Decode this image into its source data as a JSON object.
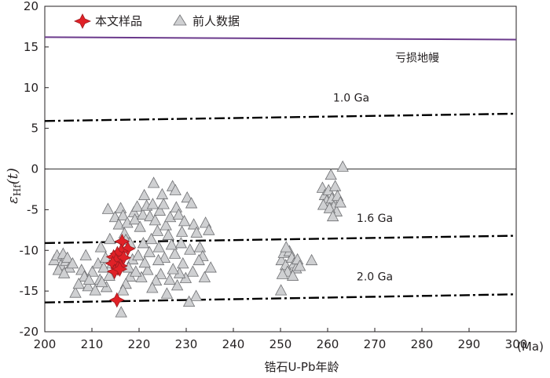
{
  "chart_data": {
    "type": "scatter",
    "xlabel": "锆石U-Pb年龄",
    "ylabel_main": "ε",
    "ylabel_sub": "Hf",
    "ylabel_arg": "(t)",
    "x_unit": "(Ma)",
    "xlim": [
      200,
      300
    ],
    "ylim": [
      -20,
      20
    ],
    "x_ticks": [
      "200",
      "210",
      "220",
      "230",
      "240",
      "250",
      "260",
      "270",
      "280",
      "290",
      "300"
    ],
    "y_ticks": [
      "20",
      "15",
      "10",
      "5",
      "0",
      "-5",
      "-10",
      "-15",
      "-20"
    ],
    "legend": [
      {
        "label": "本文样品",
        "marker": "diamond",
        "color": "#e02127"
      },
      {
        "label": "前人数据",
        "marker": "triangle",
        "color": "#cfd0d2"
      }
    ],
    "reference_lines": [
      {
        "name": "亏损地幔",
        "kind": "solid",
        "color": "#6b3a8c",
        "x": [
          200,
          300
        ],
        "y": [
          16.2,
          15.9
        ]
      },
      {
        "name": "1.0 Ga",
        "kind": "dashdot",
        "color": "#000000",
        "x": [
          200,
          300
        ],
        "y": [
          5.9,
          6.8
        ]
      },
      {
        "name": "1.6 Ga",
        "kind": "dashdot",
        "color": "#000000",
        "x": [
          200,
          300
        ],
        "y": [
          -9.1,
          -8.2
        ]
      },
      {
        "name": "2.0 Ga",
        "kind": "dashdot",
        "color": "#000000",
        "x": [
          200,
          300
        ],
        "y": [
          -16.4,
          -15.4
        ]
      },
      {
        "name": "",
        "kind": "thin",
        "color": "#333333",
        "x": [
          200,
          300
        ],
        "y": [
          0,
          0
        ]
      }
    ],
    "annotations": [
      {
        "text": "亏损地幔",
        "x": 279,
        "y": 13.2
      },
      {
        "text": "1.0 Ga",
        "x": 265,
        "y": 8.3
      },
      {
        "text": "1.6 Ga",
        "x": 270,
        "y": -6.5
      },
      {
        "text": "2.0 Ga",
        "x": 270,
        "y": -13.7
      }
    ],
    "series": [
      {
        "name": "本文样品",
        "marker": "diamond",
        "color": "#e02127",
        "points": [
          [
            216.4,
            -8.9
          ],
          [
            217.6,
            -9.8
          ],
          [
            216.2,
            -10.1
          ],
          [
            215.4,
            -10.4
          ],
          [
            214.6,
            -10.8
          ],
          [
            216.7,
            -10.9
          ],
          [
            215.1,
            -11.3
          ],
          [
            214.4,
            -11.6
          ],
          [
            216.0,
            -11.9
          ],
          [
            215.5,
            -12.2
          ],
          [
            214.8,
            -12.6
          ],
          [
            215.9,
            -12.3
          ],
          [
            215.3,
            -16.1
          ]
        ]
      },
      {
        "name": "前人数据",
        "marker": "triangle",
        "color": "#cfd0d2",
        "points": [
          [
            202.0,
            -11.2
          ],
          [
            202.6,
            -10.6
          ],
          [
            203.4,
            -11.8
          ],
          [
            203.9,
            -10.4
          ],
          [
            204.5,
            -11.3
          ],
          [
            205.2,
            -12.1
          ],
          [
            204.8,
            -10.9
          ],
          [
            205.9,
            -11.6
          ],
          [
            202.9,
            -12.4
          ],
          [
            204.1,
            -12.8
          ],
          [
            206.5,
            -15.2
          ],
          [
            207.8,
            -12.4
          ],
          [
            208.4,
            -13.2
          ],
          [
            208.7,
            -10.6
          ],
          [
            209.2,
            -14.4
          ],
          [
            210.1,
            -12.6
          ],
          [
            210.7,
            -14.9
          ],
          [
            211.3,
            -11.6
          ],
          [
            211.7,
            -13.6
          ],
          [
            212.5,
            -12.1
          ],
          [
            213.1,
            -14.5
          ],
          [
            213.7,
            -13.1
          ],
          [
            212.9,
            -10.9
          ],
          [
            214.3,
            -11.6
          ],
          [
            213.4,
            -4.9
          ],
          [
            214.9,
            -5.9
          ],
          [
            216.1,
            -4.8
          ],
          [
            216.6,
            -5.7
          ],
          [
            215.7,
            -6.8
          ],
          [
            216.9,
            -7.9
          ],
          [
            217.2,
            -8.7
          ],
          [
            218.1,
            -9.1
          ],
          [
            218.6,
            -11.1
          ],
          [
            218.1,
            -13.2
          ],
          [
            217.8,
            -12.1
          ],
          [
            217.2,
            -14.1
          ],
          [
            216.6,
            -14.9
          ],
          [
            216.2,
            -17.6
          ],
          [
            217.5,
            -6.6
          ],
          [
            218.9,
            -5.3
          ],
          [
            219.6,
            -4.6
          ],
          [
            219.1,
            -6.2
          ],
          [
            220.2,
            -7.1
          ],
          [
            220.8,
            -5.6
          ],
          [
            221.1,
            -3.2
          ],
          [
            221.6,
            -4.5
          ],
          [
            222.3,
            -5.8
          ],
          [
            222.9,
            -4.3
          ],
          [
            223.1,
            -1.7
          ],
          [
            223.4,
            -6.3
          ],
          [
            223.9,
            -7.6
          ],
          [
            224.4,
            -5.1
          ],
          [
            224.9,
            -3.1
          ],
          [
            225.2,
            -4.3
          ],
          [
            225.7,
            -6.9
          ],
          [
            226.2,
            -8.1
          ],
          [
            226.6,
            -5.9
          ],
          [
            227.1,
            -2.1
          ],
          [
            227.7,
            -2.6
          ],
          [
            227.9,
            -4.7
          ],
          [
            228.4,
            -5.6
          ],
          [
            229.1,
            -7.7
          ],
          [
            229.6,
            -6.4
          ],
          [
            230.2,
            -3.5
          ],
          [
            231.1,
            -4.2
          ],
          [
            231.6,
            -6.8
          ],
          [
            232.2,
            -7.8
          ],
          [
            232.9,
            -9.6
          ],
          [
            233.5,
            -10.7
          ],
          [
            234.1,
            -6.6
          ],
          [
            234.8,
            -7.5
          ],
          [
            235.2,
            -12.1
          ],
          [
            233.9,
            -13.3
          ],
          [
            232.7,
            -11.2
          ],
          [
            232.1,
            -15.6
          ],
          [
            231.4,
            -12.6
          ],
          [
            230.6,
            -16.3
          ],
          [
            229.9,
            -13.4
          ],
          [
            229.3,
            -11.6
          ],
          [
            228.6,
            -12.8
          ],
          [
            228.1,
            -14.3
          ],
          [
            227.6,
            -10.4
          ],
          [
            227.2,
            -12.3
          ],
          [
            226.5,
            -13.6
          ],
          [
            225.9,
            -15.3
          ],
          [
            225.4,
            -10.9
          ],
          [
            224.6,
            -12.9
          ],
          [
            224.1,
            -11.2
          ],
          [
            223.6,
            -13.7
          ],
          [
            222.8,
            -14.6
          ],
          [
            222.2,
            -10.2
          ],
          [
            221.8,
            -12.4
          ],
          [
            221.2,
            -11.5
          ],
          [
            220.5,
            -13.3
          ],
          [
            219.8,
            -10.6
          ],
          [
            219.3,
            -12.6
          ],
          [
            220.9,
            -9.1
          ],
          [
            222.6,
            -8.6
          ],
          [
            224.2,
            -9.6
          ],
          [
            226.9,
            -9.3
          ],
          [
            228.9,
            -9.1
          ],
          [
            230.8,
            -9.9
          ],
          [
            213.8,
            -8.6
          ],
          [
            211.9,
            -9.6
          ],
          [
            209.4,
            -13.6
          ],
          [
            207.2,
            -14.1
          ],
          [
            212.1,
            -13.9
          ],
          [
            250.2,
            -11.2
          ],
          [
            250.7,
            -10.3
          ],
          [
            251.1,
            -11.8
          ],
          [
            251.5,
            -12.6
          ],
          [
            251.9,
            -10.1
          ],
          [
            252.4,
            -10.9
          ],
          [
            252.9,
            -11.6
          ],
          [
            253.3,
            -12.2
          ],
          [
            252.6,
            -13.1
          ],
          [
            251.2,
            -9.6
          ],
          [
            250.4,
            -12.9
          ],
          [
            250.1,
            -14.9
          ],
          [
            253.6,
            -11.1
          ],
          [
            254.1,
            -11.9
          ],
          [
            256.6,
            -11.2
          ],
          [
            258.9,
            -2.3
          ],
          [
            259.4,
            -3.2
          ],
          [
            259.8,
            -3.9
          ],
          [
            260.2,
            -2.6
          ],
          [
            260.7,
            -0.7
          ],
          [
            260.9,
            -3.6
          ],
          [
            261.3,
            -4.6
          ],
          [
            261.6,
            -2.1
          ],
          [
            261.9,
            -5.2
          ],
          [
            262.1,
            -3.3
          ],
          [
            262.7,
            -4.1
          ],
          [
            263.2,
            0.3
          ],
          [
            259.1,
            -4.4
          ],
          [
            260.4,
            -4.8
          ],
          [
            261.1,
            -5.8
          ]
        ]
      }
    ]
  }
}
